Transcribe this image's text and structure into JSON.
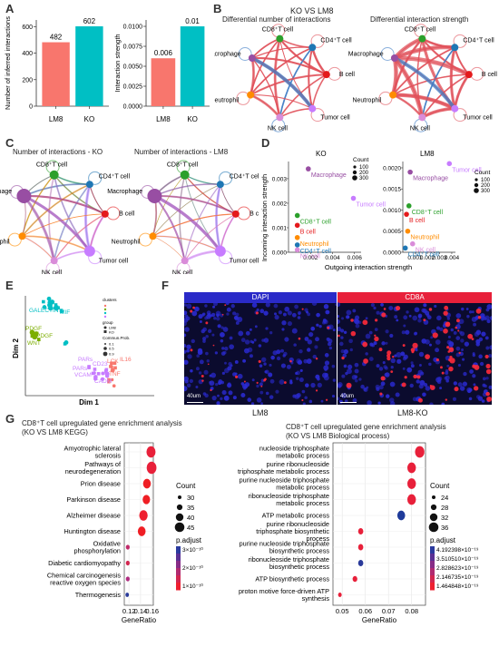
{
  "panel_labels": {
    "a": "A",
    "b": "B",
    "c": "C",
    "d": "D",
    "e": "E",
    "f": "F",
    "g": "G"
  },
  "panelA": {
    "left": {
      "ylabel": "Number of inferred interactions",
      "categories": [
        "LM8",
        "KO"
      ],
      "values": [
        482,
        602
      ],
      "value_labels": [
        "482",
        "602"
      ],
      "yticks": [
        "0",
        "200",
        "400",
        "600"
      ],
      "ylim": [
        0,
        650
      ]
    },
    "right": {
      "ylabel": "Interaction strength",
      "categories": [
        "LM8",
        "KO"
      ],
      "values": [
        0.006,
        0.01
      ],
      "value_labels": [
        "0.006",
        "0.01"
      ],
      "yticks": [
        "0.0000",
        "0.0025",
        "0.0050",
        "0.0075",
        "0.0100"
      ],
      "ylim": [
        0,
        0.0108
      ]
    },
    "colors": {
      "lm8": "#f8766d",
      "ko": "#00bfc4"
    }
  },
  "panelB": {
    "title": "KO VS LM8",
    "left_title": "Differential number of interactions",
    "right_title": "Differential interaction strength"
  },
  "panelC": {
    "left_title": "Number of interactions - KO",
    "right_title": "Number of interactions - LM8"
  },
  "nodes": [
    {
      "label": "CD8⁺T cell",
      "color": "#2ca02c"
    },
    {
      "label": "CD4⁺T cell",
      "color": "#1f77b4"
    },
    {
      "label": "B cell",
      "color": "#e41a1c"
    },
    {
      "label": "Tumor cell",
      "color": "#c77cff"
    },
    {
      "label": "NK cell",
      "color": "#d98cd9"
    },
    {
      "label": "Neutrophil",
      "color": "#ff8c00"
    },
    {
      "label": "Macrophage",
      "color": "#984ea3"
    }
  ],
  "panelD": {
    "xlabel": "Outgoing interaction strength",
    "ylabel": "Incoming interaction strength",
    "count_title": "Count",
    "count_values": [
      "100",
      "200",
      "300"
    ],
    "ko": {
      "title": "KO",
      "yticks": [
        "0.000",
        "0.001",
        "0.002",
        "0.003"
      ],
      "xticks": [
        "0.002",
        "0.004",
        "0.006"
      ],
      "points": [
        {
          "label": "Macrophage",
          "x": 0.0018,
          "y": 0.0034,
          "color": "#984ea3"
        },
        {
          "label": "Tumor cell",
          "x": 0.0059,
          "y": 0.0022,
          "color": "#c77cff"
        },
        {
          "label": "CD8⁺T cell",
          "x": 0.0008,
          "y": 0.0015,
          "color": "#2ca02c"
        },
        {
          "label": "B cell",
          "x": 0.0008,
          "y": 0.0011,
          "color": "#e41a1c"
        },
        {
          "label": "Neutrophil",
          "x": 0.0008,
          "y": 0.0006,
          "color": "#ff8c00"
        },
        {
          "label": "CD4⁺T cell",
          "x": 0.0008,
          "y": 0.0003,
          "color": "#1f77b4"
        },
        {
          "label": "NK cell",
          "x": 0.0008,
          "y": 0.0001,
          "color": "#d98cd9"
        }
      ]
    },
    "lm8": {
      "title": "LM8",
      "yticks": [
        "0.0000",
        "0.0005",
        "0.0010",
        "0.0015",
        "0.0020"
      ],
      "xticks": [
        "0.001",
        "0.002",
        "0.003",
        "0.004"
      ],
      "points": [
        {
          "label": "Tumor cell",
          "x": 0.0038,
          "y": 0.0021,
          "color": "#c77cff"
        },
        {
          "label": "Macrophage",
          "x": 0.0006,
          "y": 0.0019,
          "color": "#984ea3"
        },
        {
          "label": "CD8⁺T cell",
          "x": 0.0005,
          "y": 0.0011,
          "color": "#2ca02c"
        },
        {
          "label": "B cell",
          "x": 0.0003,
          "y": 0.0009,
          "color": "#e41a1c"
        },
        {
          "label": "Neutrophil",
          "x": 0.0004,
          "y": 0.0005,
          "color": "#ff8c00"
        },
        {
          "label": "NK cell",
          "x": 0.0008,
          "y": 0.0002,
          "color": "#d98cd9"
        },
        {
          "label": "CD4⁺T cell",
          "x": 0.0002,
          "y": 0.0001,
          "color": "#1f77b4"
        }
      ]
    }
  },
  "panelE": {
    "xlabel": "Dim 1",
    "ylabel": "Dim 2",
    "legend_clusters": "clusters",
    "legend_group": "group",
    "legend_lm8": "LM8",
    "legend_ko": "KO",
    "legend_prob": "Commun.Prob.",
    "prob_values": [
      "0.1",
      "0.5",
      "0.9"
    ],
    "labels": [
      {
        "text": "GALECTIN",
        "color": "#00bfc4"
      },
      {
        "text": "MIF",
        "color": "#00bfc4"
      },
      {
        "text": "PDGF",
        "color": "#7cae00"
      },
      {
        "text": "PDGF",
        "color": "#7cae00"
      },
      {
        "text": "WNT",
        "color": "#7cae00"
      },
      {
        "text": "PARs",
        "color": "#c77cff"
      },
      {
        "text": "CD23",
        "color": "#c77cff"
      },
      {
        "text": "LCK",
        "color": "#f8766d"
      },
      {
        "text": "IL16",
        "color": "#f8766d"
      },
      {
        "text": "PARs",
        "color": "#c77cff"
      },
      {
        "text": "VCAM",
        "color": "#c77cff"
      },
      {
        "text": "TNF",
        "color": "#f8766d"
      },
      {
        "text": "CADM",
        "color": "#c77cff"
      }
    ]
  },
  "panelF": {
    "left_banner": "DAPI",
    "right_banner": "CD8A",
    "scale": "40um",
    "left_label": "LM8",
    "right_label": "LM8-KO"
  },
  "panelG": {
    "left": {
      "title1": "CD8⁺T cell upregulated gene enrichment analysis",
      "title2": "(KO VS LM8 KEGG)",
      "xlabel": "GeneRatio",
      "xticks": [
        "0.12",
        "0.14",
        "0.16"
      ],
      "count_title": "Count",
      "count_values": [
        "30",
        "35",
        "40",
        "45"
      ],
      "padj_title": "p.adjust",
      "padj_values": [
        "3×10⁻¹⁰",
        "2×10⁻¹⁰",
        "1×10⁻¹⁰"
      ],
      "terms": [
        {
          "label": "Amyotrophic lateral sclerosis",
          "x": 0.158,
          "count": 44,
          "color": "#e8203a"
        },
        {
          "label": "Pathways of neurodegeneration",
          "x": 0.159,
          "count": 46,
          "color": "#e8203a"
        },
        {
          "label": "Prion disease",
          "x": 0.151,
          "count": 40,
          "color": "#ef1e24"
        },
        {
          "label": "Parkinson disease",
          "x": 0.15,
          "count": 39,
          "color": "#ef1e24"
        },
        {
          "label": "Alzheimer disease",
          "x": 0.145,
          "count": 42,
          "color": "#ee2030"
        },
        {
          "label": "Huntington disease",
          "x": 0.142,
          "count": 40,
          "color": "#ef1e24"
        },
        {
          "label": "Oxidative phosphorylation",
          "x": 0.118,
          "count": 28,
          "color": "#c02a6a"
        },
        {
          "label": "Diabetic cardiomyopathy",
          "x": 0.118,
          "count": 28,
          "color": "#d22650"
        },
        {
          "label": "Chemical carcinogenesis reactive oxygen species",
          "x": 0.118,
          "count": 28,
          "color": "#b02c80"
        },
        {
          "label": "Thermogenesis",
          "x": 0.117,
          "count": 27,
          "color": "#2a3a9a"
        }
      ]
    },
    "right": {
      "title1": "CD8⁺T cell upregulated gene enrichment analysis",
      "title2": "(KO VS LM8 Biological process)",
      "xlabel": "GeneRatio",
      "xticks": [
        "0.05",
        "0.06",
        "0.07",
        "0.08"
      ],
      "count_title": "Count",
      "count_values": [
        "24",
        "28",
        "32",
        "36"
      ],
      "padj_title": "p.adjust",
      "padj_values": [
        "4.192398×10⁻¹⁹",
        "3.510510×10⁻¹⁹",
        "2.828623×10⁻¹⁹",
        "2.146735×10⁻¹⁹",
        "1.464848×10⁻¹⁹"
      ],
      "terms": [
        {
          "label": "nucleoside triphosphate metabolic process",
          "x": 0.0835,
          "count": 36,
          "color": "#e8203a"
        },
        {
          "label": "purine ribonucleoside triphosphate metabolic process",
          "x": 0.08,
          "count": 34,
          "color": "#e8203a"
        },
        {
          "label": "purine nucleoside triphosphate metabolic process",
          "x": 0.08,
          "count": 34,
          "color": "#e8203a"
        },
        {
          "label": "ribonucleoside triphosphate metabolic process",
          "x": 0.08,
          "count": 34,
          "color": "#e8203a"
        },
        {
          "label": "ATP metabolic process",
          "x": 0.0755,
          "count": 32,
          "color": "#1f3b9a"
        },
        {
          "label": "purine ribonucleoside triphosphate biosynthetic process",
          "x": 0.058,
          "count": 25,
          "color": "#e8203a"
        },
        {
          "label": "purine nucleoside triphosphate biosynthetic process",
          "x": 0.058,
          "count": 25,
          "color": "#e8203a"
        },
        {
          "label": "ribonucleoside triphosphate biosynthetic process",
          "x": 0.058,
          "count": 25,
          "color": "#2a3a9a"
        },
        {
          "label": "ATP biosynthetic process",
          "x": 0.0555,
          "count": 24,
          "color": "#e8203a"
        },
        {
          "label": "proton motive force-driven ATP synthesis",
          "x": 0.049,
          "count": 21,
          "color": "#e8203a"
        }
      ]
    }
  }
}
